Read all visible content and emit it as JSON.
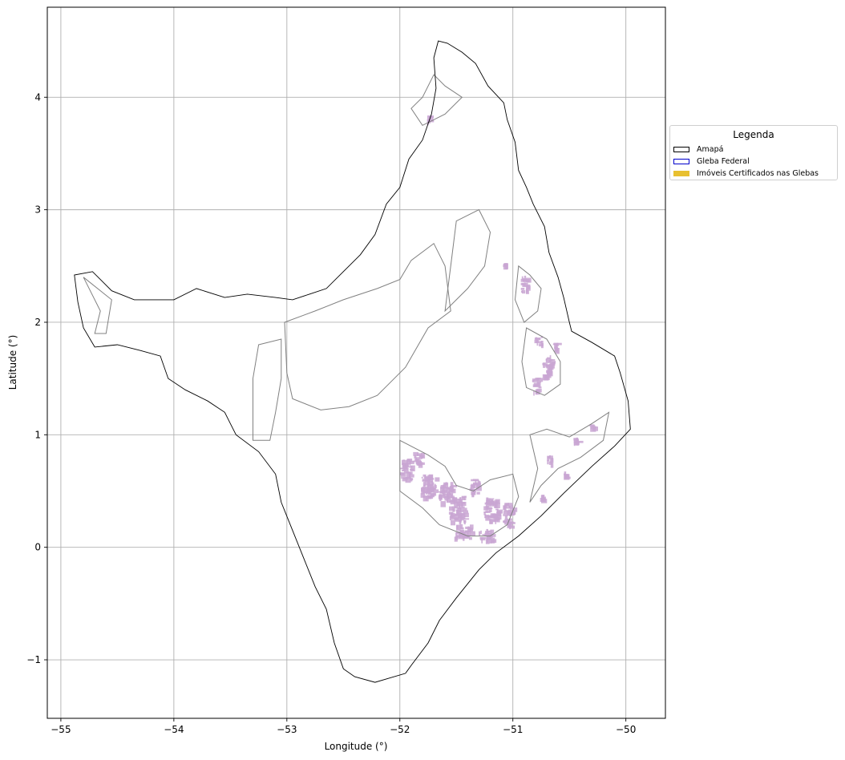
{
  "chart_data": {
    "type": "map",
    "xlabel": "Longitude (°)",
    "ylabel": "Latitude (°)",
    "xlim": [
      -55.12,
      -49.65
    ],
    "ylim": [
      -1.52,
      4.8
    ],
    "xticks": [
      -55,
      -54,
      -53,
      -52,
      -51,
      -50
    ],
    "yticks": [
      -1,
      0,
      1,
      2,
      3,
      4
    ],
    "xtick_labels": [
      "−55",
      "−54",
      "−53",
      "−52",
      "−51",
      "−50"
    ],
    "ytick_labels": [
      "−1",
      "0",
      "1",
      "2",
      "3",
      "4"
    ],
    "grid": true,
    "legend": {
      "title": "Legenda",
      "placement": "right, outside plot",
      "entries": [
        {
          "label": "Amapá",
          "style": "outline",
          "color": "#000000"
        },
        {
          "label": "Gleba Federal",
          "style": "outline",
          "color": "#0000cc"
        },
        {
          "label": "Imóveis Certificados nas Glebas",
          "style": "fill",
          "color": "#e8c030"
        }
      ]
    },
    "amapa_outline": [
      [
        -51.66,
        4.5
      ],
      [
        -51.58,
        4.48
      ],
      [
        -51.45,
        4.4
      ],
      [
        -51.33,
        4.3
      ],
      [
        -51.22,
        4.1
      ],
      [
        -51.08,
        3.95
      ],
      [
        -51.05,
        3.8
      ],
      [
        -50.98,
        3.6
      ],
      [
        -50.95,
        3.35
      ],
      [
        -50.88,
        3.2
      ],
      [
        -50.82,
        3.05
      ],
      [
        -50.72,
        2.85
      ],
      [
        -50.68,
        2.62
      ],
      [
        -50.6,
        2.4
      ],
      [
        -50.55,
        2.22
      ],
      [
        -50.5,
        2.0
      ],
      [
        -50.48,
        1.92
      ],
      [
        -50.3,
        1.82
      ],
      [
        -50.1,
        1.7
      ],
      [
        -50.05,
        1.55
      ],
      [
        -49.98,
        1.3
      ],
      [
        -49.96,
        1.05
      ],
      [
        -50.1,
        0.9
      ],
      [
        -50.3,
        0.72
      ],
      [
        -50.55,
        0.48
      ],
      [
        -50.75,
        0.28
      ],
      [
        -50.95,
        0.1
      ],
      [
        -51.15,
        -0.05
      ],
      [
        -51.3,
        -0.2
      ],
      [
        -51.5,
        -0.45
      ],
      [
        -51.65,
        -0.65
      ],
      [
        -51.75,
        -0.85
      ],
      [
        -51.9,
        -1.05
      ],
      [
        -51.95,
        -1.12
      ],
      [
        -52.12,
        -1.17
      ],
      [
        -52.22,
        -1.2
      ],
      [
        -52.4,
        -1.15
      ],
      [
        -52.5,
        -1.08
      ],
      [
        -52.58,
        -0.85
      ],
      [
        -52.65,
        -0.55
      ],
      [
        -52.75,
        -0.35
      ],
      [
        -52.85,
        -0.1
      ],
      [
        -52.95,
        0.15
      ],
      [
        -53.05,
        0.4
      ],
      [
        -53.1,
        0.65
      ],
      [
        -53.25,
        0.85
      ],
      [
        -53.45,
        1.0
      ],
      [
        -53.5,
        1.1
      ],
      [
        -53.55,
        1.2
      ],
      [
        -53.7,
        1.3
      ],
      [
        -53.9,
        1.4
      ],
      [
        -54.05,
        1.5
      ],
      [
        -54.12,
        1.7
      ],
      [
        -54.3,
        1.75
      ],
      [
        -54.5,
        1.8
      ],
      [
        -54.7,
        1.78
      ],
      [
        -54.8,
        1.95
      ],
      [
        -54.85,
        2.18
      ],
      [
        -54.88,
        2.42
      ],
      [
        -54.72,
        2.45
      ],
      [
        -54.55,
        2.28
      ],
      [
        -54.35,
        2.2
      ],
      [
        -54.0,
        2.2
      ],
      [
        -53.8,
        2.3
      ],
      [
        -53.55,
        2.22
      ],
      [
        -53.35,
        2.25
      ],
      [
        -53.1,
        2.22
      ],
      [
        -52.95,
        2.2
      ],
      [
        -52.8,
        2.25
      ],
      [
        -52.65,
        2.3
      ],
      [
        -52.5,
        2.45
      ],
      [
        -52.35,
        2.6
      ],
      [
        -52.22,
        2.78
      ],
      [
        -52.12,
        3.05
      ],
      [
        -52.0,
        3.2
      ],
      [
        -51.92,
        3.45
      ],
      [
        -51.8,
        3.62
      ],
      [
        -51.72,
        3.85
      ],
      [
        -51.68,
        4.08
      ],
      [
        -51.7,
        4.35
      ],
      [
        -51.66,
        4.5
      ]
    ],
    "gleba_outlines": [
      [
        [
          -51.7,
          4.2
        ],
        [
          -51.6,
          4.1
        ],
        [
          -51.45,
          4.0
        ],
        [
          -51.6,
          3.85
        ],
        [
          -51.8,
          3.75
        ],
        [
          -51.9,
          3.9
        ],
        [
          -51.8,
          4.0
        ],
        [
          -51.7,
          4.2
        ]
      ],
      [
        [
          -53.02,
          2.0
        ],
        [
          -52.75,
          2.1
        ],
        [
          -52.5,
          2.2
        ],
        [
          -52.2,
          2.3
        ],
        [
          -52.0,
          2.38
        ],
        [
          -51.9,
          2.55
        ],
        [
          -51.7,
          2.7
        ],
        [
          -51.6,
          2.5
        ],
        [
          -51.55,
          2.1
        ],
        [
          -51.75,
          1.95
        ],
        [
          -51.95,
          1.6
        ],
        [
          -52.1,
          1.45
        ],
        [
          -52.2,
          1.35
        ],
        [
          -52.45,
          1.25
        ],
        [
          -52.7,
          1.22
        ],
        [
          -52.95,
          1.32
        ],
        [
          -53.0,
          1.55
        ],
        [
          -53.02,
          2.0
        ]
      ],
      [
        [
          -53.25,
          1.8
        ],
        [
          -53.05,
          1.85
        ],
        [
          -53.05,
          1.5
        ],
        [
          -53.1,
          1.2
        ],
        [
          -53.15,
          0.95
        ],
        [
          -53.3,
          0.95
        ],
        [
          -53.3,
          1.2
        ],
        [
          -53.3,
          1.5
        ],
        [
          -53.25,
          1.8
        ]
      ],
      [
        [
          -51.5,
          2.9
        ],
        [
          -51.3,
          3.0
        ],
        [
          -51.2,
          2.8
        ],
        [
          -51.25,
          2.5
        ],
        [
          -51.4,
          2.3
        ],
        [
          -51.6,
          2.1
        ],
        [
          -51.55,
          2.5
        ],
        [
          -51.5,
          2.9
        ]
      ],
      [
        [
          -52.0,
          0.95
        ],
        [
          -51.75,
          0.82
        ],
        [
          -51.6,
          0.72
        ],
        [
          -51.5,
          0.55
        ],
        [
          -51.35,
          0.5
        ],
        [
          -51.2,
          0.6
        ],
        [
          -51.0,
          0.65
        ],
        [
          -50.95,
          0.45
        ],
        [
          -51.05,
          0.2
        ],
        [
          -51.2,
          0.1
        ],
        [
          -51.4,
          0.1
        ],
        [
          -51.65,
          0.2
        ],
        [
          -51.8,
          0.35
        ],
        [
          -52.0,
          0.5
        ],
        [
          -52.0,
          0.95
        ]
      ],
      [
        [
          -50.95,
          2.5
        ],
        [
          -50.85,
          2.42
        ],
        [
          -50.75,
          2.3
        ],
        [
          -50.78,
          2.1
        ],
        [
          -50.9,
          2.0
        ],
        [
          -50.98,
          2.2
        ],
        [
          -50.95,
          2.5
        ]
      ],
      [
        [
          -50.88,
          1.95
        ],
        [
          -50.7,
          1.85
        ],
        [
          -50.58,
          1.65
        ],
        [
          -50.58,
          1.45
        ],
        [
          -50.72,
          1.35
        ],
        [
          -50.88,
          1.42
        ],
        [
          -50.92,
          1.65
        ],
        [
          -50.88,
          1.95
        ]
      ],
      [
        [
          -50.85,
          1.0
        ],
        [
          -50.7,
          1.05
        ],
        [
          -50.5,
          0.98
        ],
        [
          -50.3,
          1.1
        ],
        [
          -50.15,
          1.2
        ],
        [
          -50.2,
          0.95
        ],
        [
          -50.4,
          0.8
        ],
        [
          -50.6,
          0.7
        ],
        [
          -50.75,
          0.55
        ],
        [
          -50.85,
          0.4
        ],
        [
          -50.78,
          0.7
        ],
        [
          -50.85,
          1.0
        ]
      ],
      [
        [
          -54.8,
          2.4
        ],
        [
          -54.65,
          2.1
        ],
        [
          -54.7,
          1.9
        ],
        [
          -54.6,
          1.9
        ],
        [
          -54.55,
          2.2
        ],
        [
          -54.8,
          2.4
        ]
      ]
    ],
    "imoveis_clusters": [
      [
        -51.75,
        0.55,
        0.14,
        0.2
      ],
      [
        -51.6,
        0.5,
        0.12,
        0.18
      ],
      [
        -51.5,
        0.35,
        0.14,
        0.22
      ],
      [
        -51.35,
        0.55,
        0.1,
        0.12
      ],
      [
        -51.2,
        0.35,
        0.12,
        0.2
      ],
      [
        -51.05,
        0.3,
        0.08,
        0.22
      ],
      [
        -51.45,
        0.15,
        0.14,
        0.12
      ],
      [
        -51.25,
        0.12,
        0.12,
        0.1
      ],
      [
        -51.95,
        0.7,
        0.1,
        0.18
      ],
      [
        -51.85,
        0.8,
        0.08,
        0.1
      ],
      [
        -50.9,
        2.35,
        0.06,
        0.14
      ],
      [
        -50.78,
        1.85,
        0.06,
        0.08
      ],
      [
        -50.7,
        1.62,
        0.08,
        0.18
      ],
      [
        -50.8,
        1.45,
        0.06,
        0.12
      ],
      [
        -50.62,
        1.78,
        0.05,
        0.08
      ],
      [
        -50.45,
        0.95,
        0.06,
        0.05
      ],
      [
        -50.3,
        1.08,
        0.05,
        0.06
      ],
      [
        -50.68,
        0.78,
        0.05,
        0.08
      ],
      [
        -50.55,
        0.65,
        0.04,
        0.05
      ],
      [
        -51.75,
        3.82,
        0.02,
        0.04
      ],
      [
        -51.08,
        2.52,
        0.03,
        0.02
      ],
      [
        -50.75,
        0.45,
        0.03,
        0.05
      ]
    ]
  }
}
